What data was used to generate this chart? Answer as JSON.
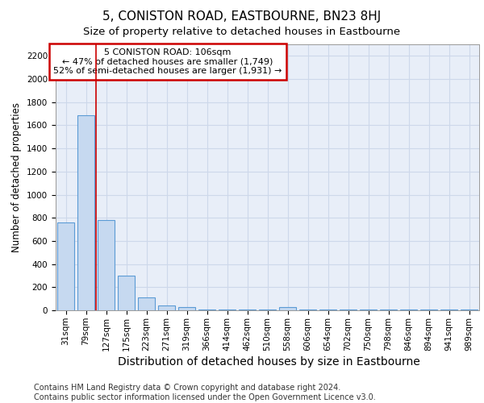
{
  "title": "5, CONISTON ROAD, EASTBOURNE, BN23 8HJ",
  "subtitle": "Size of property relative to detached houses in Eastbourne",
  "xlabel": "Distribution of detached houses by size in Eastbourne",
  "ylabel": "Number of detached properties",
  "categories": [
    "31sqm",
    "79sqm",
    "127sqm",
    "175sqm",
    "223sqm",
    "271sqm",
    "319sqm",
    "366sqm",
    "414sqm",
    "462sqm",
    "510sqm",
    "558sqm",
    "606sqm",
    "654sqm",
    "702sqm",
    "750sqm",
    "798sqm",
    "846sqm",
    "894sqm",
    "941sqm",
    "989sqm"
  ],
  "values": [
    760,
    1690,
    780,
    300,
    110,
    40,
    30,
    5,
    5,
    5,
    5,
    30,
    5,
    5,
    5,
    5,
    5,
    5,
    5,
    5,
    5
  ],
  "bar_color": "#c6d9f0",
  "bar_edge_color": "#5b9bd5",
  "grid_color": "#cdd8ea",
  "background_color": "#e8eef8",
  "red_line_x": 1.5,
  "annotation_text": "5 CONISTON ROAD: 106sqm\n← 47% of detached houses are smaller (1,749)\n52% of semi-detached houses are larger (1,931) →",
  "annotation_box_color": "#ffffff",
  "annotation_border_color": "#cc0000",
  "ylim": [
    0,
    2300
  ],
  "yticks": [
    0,
    200,
    400,
    600,
    800,
    1000,
    1200,
    1400,
    1600,
    1800,
    2000,
    2200
  ],
  "footer": "Contains HM Land Registry data © Crown copyright and database right 2024.\nContains public sector information licensed under the Open Government Licence v3.0.",
  "title_fontsize": 11,
  "subtitle_fontsize": 9.5,
  "xlabel_fontsize": 10,
  "ylabel_fontsize": 8.5,
  "tick_fontsize": 7.5,
  "annotation_fontsize": 8,
  "footer_fontsize": 7
}
